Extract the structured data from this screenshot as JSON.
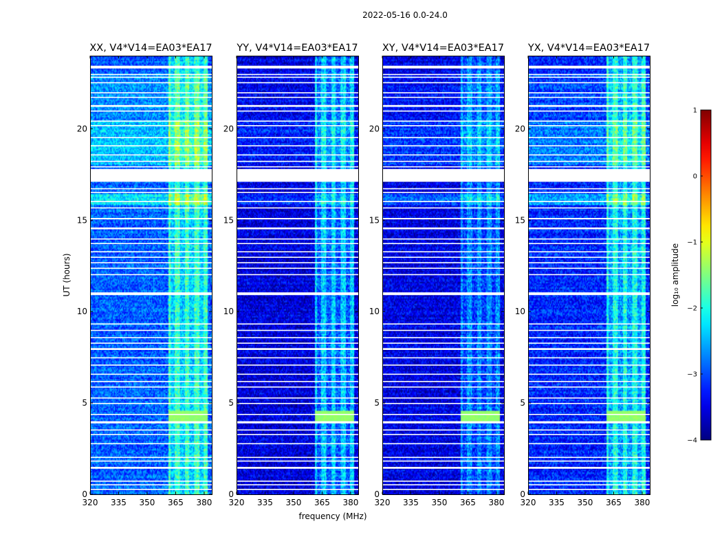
{
  "figure": {
    "suptitle": "2022-05-16 0.0-24.0",
    "xlabel": "frequency (MHz)",
    "ylabel": "UT (hours)"
  },
  "chart_data": {
    "type": "heatmap",
    "x_range": [
      320,
      384
    ],
    "y_range": [
      0,
      24
    ],
    "x_ticks": [
      320,
      335,
      350,
      365,
      380
    ],
    "y_ticks": [
      0,
      5,
      10,
      15,
      20
    ],
    "x_tick_labels": [
      "320",
      "335",
      "350",
      "365",
      "380"
    ],
    "y_tick_labels": [
      "0",
      "5",
      "10",
      "15",
      "20"
    ],
    "panels": [
      {
        "title": "XX, V4*V14=EA03*EA17",
        "baseline": -2.9,
        "band_boost": 0.9,
        "night_boost": 0.5
      },
      {
        "title": "YY, V4*V14=EA03*EA17",
        "baseline": -3.55,
        "band_boost": 1.0,
        "night_boost": 0.3
      },
      {
        "title": "XY, V4*V14=EA03*EA17",
        "baseline": -3.5,
        "band_boost": 0.7,
        "night_boost": 0.4
      },
      {
        "title": "YX, V4*V14=EA03*EA17",
        "baseline": -3.2,
        "band_boost": 1.0,
        "night_boost": 0.4
      }
    ],
    "rfi_band_mhz": [
      361,
      382
    ],
    "rfi_channels_mhz": [
      361,
      366,
      371,
      376,
      381
    ],
    "flag_bands_hours": [
      [
        17.1,
        17.8
      ],
      [
        10.9,
        11.05
      ],
      [
        3.88,
        4.0
      ],
      [
        1.4,
        1.5
      ],
      [
        7.9,
        8.0
      ],
      [
        14.5,
        14.6
      ],
      [
        21.2,
        21.3
      ],
      [
        23.3,
        23.45
      ],
      [
        15.05,
        15.12
      ]
    ],
    "flag_lines_hours": [
      0.3,
      0.55,
      0.75,
      1.85,
      2.05,
      2.8,
      3.3,
      3.55,
      4.4,
      5.0,
      5.3,
      5.9,
      6.2,
      6.6,
      7.1,
      7.5,
      8.3,
      8.6,
      9.0,
      9.35,
      12.05,
      12.4,
      12.7,
      13.0,
      13.3,
      13.75,
      14.0,
      15.7,
      16.05,
      16.55,
      16.75,
      17.95,
      18.25,
      18.6,
      19.1,
      19.55,
      20.2,
      20.45,
      21.0,
      21.75,
      22.0,
      22.55,
      22.85,
      23.0
    ],
    "colorbar": {
      "label": "log₁₀ amplitude",
      "range": [
        -4,
        1
      ],
      "ticks": [
        1,
        0,
        -1,
        -2,
        -3,
        -4
      ],
      "tick_labels": [
        "1",
        "0",
        "−1",
        "−2",
        "−3",
        "−4"
      ],
      "colormap": "jet"
    }
  }
}
